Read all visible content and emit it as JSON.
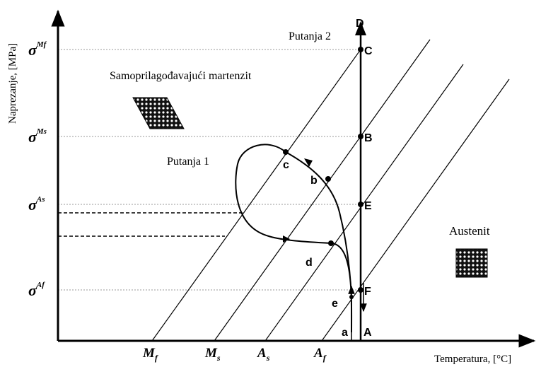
{
  "axes": {
    "y_label": "Naprezanje, [MPa]",
    "x_label": "Temperatura, [°C]"
  },
  "stress_levels": [
    {
      "symbol": "σ",
      "sup": "Mf"
    },
    {
      "symbol": "σ",
      "sup": "Ms"
    },
    {
      "symbol": "σ",
      "sup": "As"
    },
    {
      "symbol": "σ",
      "sup": "Af"
    }
  ],
  "temperatures": [
    {
      "symbol": "M",
      "sub": "f"
    },
    {
      "symbol": "M",
      "sub": "s"
    },
    {
      "symbol": "A",
      "sub": "s"
    },
    {
      "symbol": "A",
      "sub": "f"
    }
  ],
  "regions": {
    "martensite": "Samoprilagođavajući martenzit",
    "austenite": "Austenit"
  },
  "paths": {
    "path1": "Putanja 1",
    "path2": "Putanja 2"
  },
  "points": {
    "D": "D",
    "C": "C",
    "B": "B",
    "E": "E",
    "F": "F",
    "A": "A",
    "a": "a",
    "b": "b",
    "c": "c",
    "d": "d",
    "e": "e"
  }
}
